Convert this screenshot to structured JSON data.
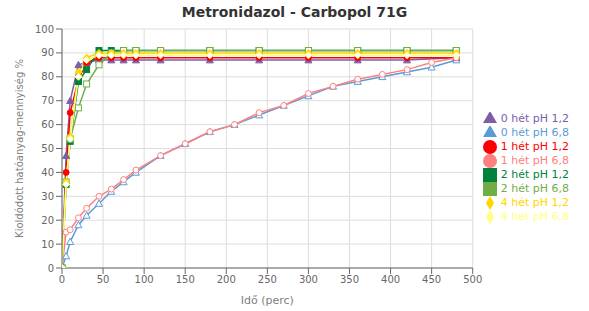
{
  "chart_data": {
    "type": "line",
    "title": "Metronidazol - Carbopol 71G",
    "x_label": "Idő (perc)",
    "y_label": "Kioldódott hatóanyag-mennyiség %",
    "xlim": [
      0,
      500
    ],
    "ylim": [
      0,
      100
    ],
    "xticks": [
      0,
      50,
      100,
      150,
      200,
      250,
      300,
      350,
      400,
      450,
      500
    ],
    "yticks": [
      0,
      10,
      20,
      30,
      40,
      50,
      60,
      70,
      80,
      90,
      100
    ],
    "grid": true,
    "legend": "right",
    "series": [
      {
        "name": "0 hét  pH 1,2",
        "color": "#7B5EA7",
        "marker": "triangle",
        "x": [
          0,
          5,
          10,
          20,
          30,
          45,
          60,
          75,
          90,
          120,
          180,
          240,
          300,
          360,
          420,
          480
        ],
        "values": [
          0,
          47,
          70,
          85,
          86,
          87,
          87,
          87,
          87,
          87,
          87,
          87,
          87,
          87,
          87,
          88
        ]
      },
      {
        "name": "0 hét  pH 6,8",
        "color": "#5B9BD5",
        "marker": "triangle-open",
        "x": [
          0,
          5,
          10,
          20,
          30,
          45,
          60,
          75,
          90,
          120,
          150,
          180,
          210,
          240,
          270,
          300,
          330,
          360,
          390,
          420,
          450,
          480
        ],
        "values": [
          0,
          5,
          11,
          18,
          22,
          27,
          32,
          36,
          40,
          47,
          52,
          57,
          60,
          64,
          68,
          72,
          76,
          78,
          80,
          82,
          84,
          87
        ]
      },
      {
        "name": "1 hét  pH 1,2",
        "color": "#FF0000",
        "marker": "circle",
        "x": [
          0,
          5,
          10,
          20,
          30,
          45,
          60,
          75,
          90,
          120,
          180,
          240,
          300,
          360,
          420,
          480
        ],
        "values": [
          0,
          40,
          65,
          79,
          86,
          88,
          88,
          88,
          88,
          88,
          88,
          88,
          88,
          88,
          88,
          88
        ]
      },
      {
        "name": "1 hét  pH 6,8",
        "color": "#FF8080",
        "marker": "circle-open",
        "x": [
          0,
          5,
          10,
          20,
          30,
          45,
          60,
          75,
          90,
          120,
          150,
          180,
          210,
          240,
          270,
          300,
          330,
          360,
          390,
          420,
          450,
          480
        ],
        "values": [
          0,
          15,
          16,
          21,
          25,
          30,
          33,
          37,
          41,
          47,
          52,
          57,
          60,
          65,
          68,
          73,
          76,
          79,
          81,
          83,
          86,
          88
        ]
      },
      {
        "name": "2 hét  pH 1,2",
        "color": "#00823C",
        "marker": "square",
        "x": [
          0,
          5,
          10,
          20,
          30,
          45,
          60,
          75,
          90,
          120,
          180,
          240,
          300,
          360,
          420,
          480
        ],
        "values": [
          0,
          35,
          53,
          78,
          83,
          91,
          91,
          91,
          91,
          91,
          91,
          91,
          91,
          91,
          91,
          91
        ]
      },
      {
        "name": "2 hét  pH 6,8",
        "color": "#70AD47",
        "marker": "square-open",
        "x": [
          0,
          5,
          10,
          20,
          30,
          45,
          60,
          75,
          90,
          120,
          180,
          240,
          300,
          360,
          420,
          480
        ],
        "values": [
          0,
          36,
          54,
          67,
          77,
          85,
          90,
          91,
          91,
          91,
          91,
          91,
          91,
          91,
          91,
          91
        ]
      },
      {
        "name": "4 hét  pH 1,2",
        "color": "#FFD700",
        "marker": "diamond",
        "x": [
          0,
          5,
          10,
          20,
          30,
          45,
          60,
          75,
          90,
          120,
          180,
          240,
          300,
          360,
          420,
          480
        ],
        "values": [
          0,
          36,
          55,
          82,
          88,
          90,
          90,
          90,
          90,
          90,
          90,
          90,
          90,
          90,
          90,
          90
        ]
      },
      {
        "name": "4 hét  pH 6,8",
        "color": "#FFFF80",
        "marker": "diamond-open",
        "x": [
          0,
          5,
          10,
          20,
          30,
          45,
          60,
          75,
          90,
          120,
          180,
          240,
          300,
          360,
          420,
          480
        ],
        "values": [
          0,
          35,
          54,
          80,
          87,
          89,
          89,
          89,
          89,
          89,
          89,
          89,
          89,
          89,
          89,
          89
        ]
      }
    ]
  }
}
